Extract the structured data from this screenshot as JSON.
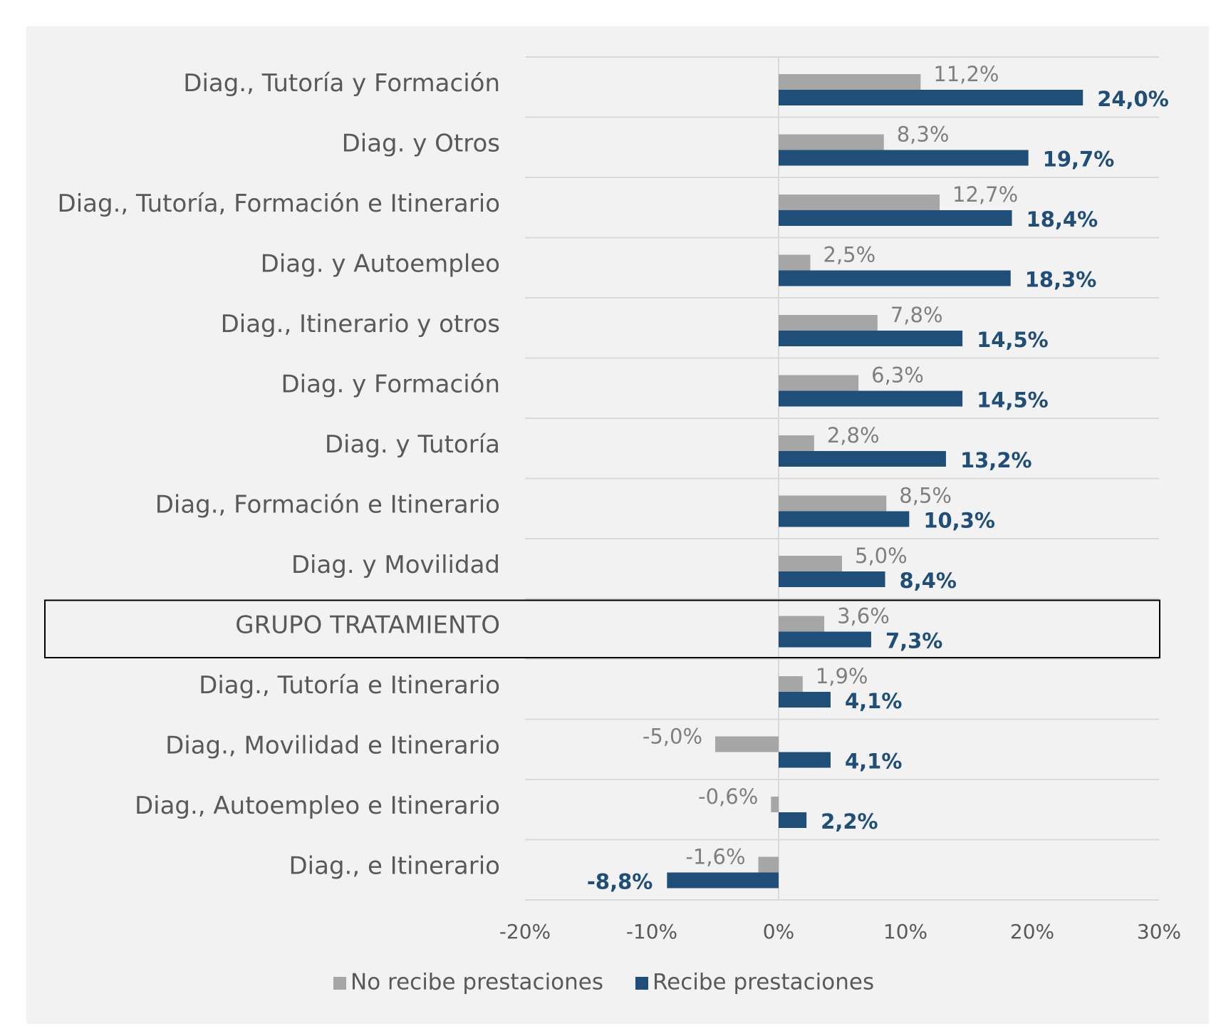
{
  "chart_data": {
    "type": "bar",
    "orientation": "horizontal",
    "categories": [
      "Diag., Tutoría y Formación",
      "Diag. y Otros",
      "Diag., Tutoría, Formación e Itinerario",
      "Diag. y Autoempleo",
      "Diag., Itinerario y otros",
      "Diag. y Formación",
      "Diag. y Tutoría",
      "Diag., Formación e Itinerario",
      "Diag. y Movilidad",
      "GRUPO TRATAMIENTO",
      "Diag., Tutoría e Itinerario",
      "Diag., Movilidad e Itinerario",
      "Diag., Autoempleo e Itinerario",
      "Diag., e Itinerario"
    ],
    "highlighted_category": "GRUPO TRATAMIENTO",
    "series": [
      {
        "name": "No recibe prestaciones",
        "color": "#a6a6a6",
        "values": [
          11.2,
          8.3,
          12.7,
          2.5,
          7.8,
          6.3,
          2.8,
          8.5,
          5.0,
          3.6,
          1.9,
          -5.0,
          -0.6,
          -1.6
        ],
        "labels": [
          "11,2%",
          "8,3%",
          "12,7%",
          "2,5%",
          "7,8%",
          "6,3%",
          "2,8%",
          "8,5%",
          "5,0%",
          "3,6%",
          "1,9%",
          "-5,0%",
          "-0,6%",
          "-1,6%"
        ]
      },
      {
        "name": "Recibe prestaciones",
        "color": "#1f4e79",
        "values": [
          24.0,
          19.7,
          18.4,
          18.3,
          14.5,
          14.5,
          13.2,
          10.3,
          8.4,
          7.3,
          4.1,
          4.1,
          2.2,
          -8.8
        ],
        "labels": [
          "24,0%",
          "19,7%",
          "18,4%",
          "18,3%",
          "14,5%",
          "14,5%",
          "13,2%",
          "10,3%",
          "8,4%",
          "7,3%",
          "4,1%",
          "4,1%",
          "2,2%",
          "-8,8%"
        ]
      }
    ],
    "xlim": [
      -20,
      30
    ],
    "xticks": [
      -20,
      -10,
      0,
      10,
      20,
      30
    ],
    "xtick_labels": [
      "-20%",
      "-10%",
      "0%",
      "10%",
      "20%",
      "30%"
    ],
    "title": "",
    "xlabel": "",
    "ylabel": "",
    "grid": "horizontal separators between categories",
    "legend_position": "bottom-center"
  }
}
